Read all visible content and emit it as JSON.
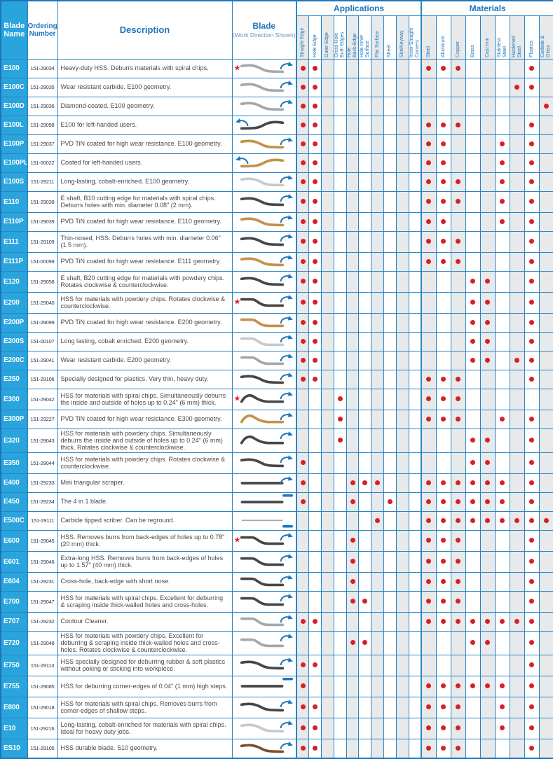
{
  "header": {
    "blade_name": "Blade\nName",
    "ordering_number": "Ordering\nNumber",
    "description": "Description",
    "blade": "Blade",
    "blade_sub": "(Work Direction Shown)",
    "applications": "Applications",
    "materials": "Materials",
    "application_columns": [
      "Straight Edge",
      "Hole Edge",
      "Outer Edge",
      "Cross-Hole\nBoth Edges",
      "Hole\nBack-Edge",
      "Hole Inner\nSurface",
      "Flat Surface",
      "Sheet",
      "Slot/Keyway",
      "Inner Straight\nCorners"
    ],
    "material_columns": [
      "Steel",
      "Aluminum",
      "Copper",
      "Brass",
      "Cast Iron",
      "Stainless\nSteel",
      "Hardened\nSteel",
      "Plastics",
      "Carbide &\nGlass"
    ]
  },
  "icons": {
    "favorite_star": "★",
    "work_direction_arc": "arc",
    "work_direction_dash": "dash"
  },
  "colors": {
    "accent_blue": "#1c75bc",
    "grid_blue": "#2a85c4",
    "name_cell_cyan": "#29a4dc",
    "dot_red": "#d62027",
    "star_red": "#ed1c24",
    "shade_gray": "#e8e9ea",
    "blade_dark": "#474747",
    "blade_silver": "#a4a8ac",
    "blade_gold": "#c2924a",
    "blade_brown": "#7b4f2e",
    "blade_light": "#c6cacd"
  },
  "rows": [
    {
      "name": "E100",
      "order": "151-29034",
      "desc": "Heavy-duty HSS. Deburrs materials with spiral chips.",
      "lines": 1,
      "star": true,
      "blade": "swan",
      "color": "silver",
      "dir": "arc",
      "apps": [
        0,
        1
      ],
      "mats": [
        0,
        1,
        2,
        7
      ]
    },
    {
      "name": "E100C",
      "order": "151-29035",
      "desc": "Wear resistant carbide. E100 geometry.",
      "lines": 1,
      "star": false,
      "blade": "swan",
      "color": "silver",
      "dir": "arc",
      "apps": [
        0,
        1
      ],
      "mats": [
        6,
        7
      ]
    },
    {
      "name": "E100D",
      "order": "151-29036",
      "desc": "Diamond-coated. E100 geometry.",
      "lines": 1,
      "star": false,
      "blade": "swan",
      "color": "silver",
      "dir": "arc",
      "apps": [
        0,
        1
      ],
      "mats": [
        8
      ]
    },
    {
      "name": "E100L",
      "order": "151-29098",
      "desc": "E100 for left-handed users.",
      "lines": 1,
      "star": false,
      "blade": "swanleft",
      "color": "dark",
      "dir": "arcleft",
      "apps": [
        0,
        1
      ],
      "mats": [
        0,
        1,
        2,
        7
      ]
    },
    {
      "name": "E100P",
      "order": "151-29037",
      "desc": "PVD TiN coated for high wear resistance. E100 geometry.",
      "lines": 1,
      "star": false,
      "blade": "swan",
      "color": "gold",
      "dir": "arc",
      "apps": [
        0,
        1
      ],
      "mats": [
        0,
        1,
        5,
        7
      ]
    },
    {
      "name": "E100PL",
      "order": "151-00022",
      "desc": "Coated for left-handed users.",
      "lines": 1,
      "star": false,
      "blade": "swanleft",
      "color": "gold",
      "dir": "arcleft",
      "apps": [
        0,
        1
      ],
      "mats": [
        0,
        1,
        5,
        7
      ]
    },
    {
      "name": "E100S",
      "order": "151-29211",
      "desc": "Long-lasting, cobalt-enriched. E100 geometry.",
      "lines": 1,
      "star": false,
      "blade": "swan",
      "color": "light",
      "dir": "arc",
      "apps": [
        0,
        1
      ],
      "mats": [
        0,
        1,
        2,
        5,
        7
      ]
    },
    {
      "name": "E110",
      "order": "151-29038",
      "desc": "E shaft, B10 cutting edge for materials with spiral chips. Deburrs holes with min. diameter 0.08\" (2 mm).",
      "lines": 2,
      "star": false,
      "blade": "swan",
      "color": "dark",
      "dir": "arc",
      "apps": [
        0,
        1
      ],
      "mats": [
        0,
        1,
        2,
        5,
        7
      ]
    },
    {
      "name": "E110P",
      "order": "151-29039",
      "desc": "PVD TiN coated for high wear resistance. E110 geometry.",
      "lines": 1,
      "star": false,
      "blade": "swan",
      "color": "gold",
      "dir": "arc",
      "apps": [
        0,
        1
      ],
      "mats": [
        0,
        1,
        5,
        7
      ]
    },
    {
      "name": "E111",
      "order": "151-29109",
      "desc": "Thin-nosed, HSS. Deburrs holes with min. diameter 0.06\" (1.5 mm).",
      "lines": 2,
      "star": false,
      "blade": "swan",
      "color": "dark",
      "dir": "arc",
      "apps": [
        0,
        1
      ],
      "mats": [
        0,
        1,
        2,
        7
      ]
    },
    {
      "name": "E111P",
      "order": "151-00099",
      "desc": "PVD TiN coated for high wear resistance. E111 geometry.",
      "lines": 1,
      "star": false,
      "blade": "swan",
      "color": "gold",
      "dir": "arc",
      "apps": [
        0,
        1
      ],
      "mats": [
        0,
        1,
        2,
        7
      ]
    },
    {
      "name": "E120",
      "order": "151-29058",
      "desc": "E shaft, B20 cutting edge for materials with powdery chips. Rotates clockwise & counterclockwise.",
      "lines": 2,
      "star": false,
      "blade": "swan",
      "color": "dark",
      "dir": "arc",
      "apps": [
        0,
        1
      ],
      "mats": [
        3,
        4,
        7
      ]
    },
    {
      "name": "E200",
      "order": "151-29040",
      "desc": "HSS for materials with powdery chips. Rotates clockwise & counterclockwise.",
      "lines": 2,
      "star": true,
      "blade": "zig",
      "color": "dark",
      "dir": "arc",
      "apps": [
        0,
        1
      ],
      "mats": [
        3,
        4,
        7
      ]
    },
    {
      "name": "E200P",
      "order": "151-29099",
      "desc": "PVD TiN coated for high wear resistance. E200 geometry.",
      "lines": 1,
      "star": false,
      "blade": "zig",
      "color": "gold",
      "dir": "arc",
      "apps": [
        0,
        1
      ],
      "mats": [
        3,
        4,
        7
      ]
    },
    {
      "name": "E200S",
      "order": "151-00107",
      "desc": "Long lasting, cobalt enriched. E200 geometry.",
      "lines": 1,
      "star": false,
      "blade": "zig",
      "color": "light",
      "dir": "arc",
      "apps": [
        0,
        1
      ],
      "mats": [
        3,
        4,
        7
      ]
    },
    {
      "name": "E200C",
      "order": "151-29041",
      "desc": "Wear resistant carbide. E200 geometry.",
      "lines": 1,
      "star": false,
      "blade": "zig",
      "color": "silver",
      "dir": "arc",
      "apps": [
        0,
        1
      ],
      "mats": [
        3,
        4,
        6,
        7
      ]
    },
    {
      "name": "E250",
      "order": "151-29106",
      "desc": "Specially designed for plastics. Very thin, heavy duty.",
      "lines": 1,
      "star": false,
      "blade": "swan",
      "color": "dark",
      "dir": "arc",
      "apps": [
        0,
        1
      ],
      "mats": [
        0,
        1,
        2,
        7
      ]
    },
    {
      "name": "E300",
      "order": "151-29042",
      "desc": "HSS for materials with spiral chips. Simultaneously deburrs the inside and outside of holes up to 0.24\" (6 mm) thick.",
      "lines": 2,
      "star": true,
      "blade": "hump",
      "color": "dark",
      "dir": "arc",
      "apps": [
        3
      ],
      "mats": [
        0,
        1,
        2
      ]
    },
    {
      "name": "E300P",
      "order": "151-29227",
      "desc": "PVD TiN coated for high wear resistance. E300 geometry.",
      "lines": 1,
      "star": false,
      "blade": "hump",
      "color": "gold",
      "dir": "arc",
      "apps": [
        3
      ],
      "mats": [
        0,
        1,
        2,
        5,
        7
      ]
    },
    {
      "name": "E320",
      "order": "151-29043",
      "desc": "HSS for materials with powdery chips. Simultaneously deburrs the inside and outside of holes up to 0.24\" (6 mm) thick. Rotates clockwise & counterclockwise.",
      "lines": 3,
      "star": false,
      "blade": "hump",
      "color": "dark",
      "dir": "arc",
      "apps": [
        3
      ],
      "mats": [
        3,
        4,
        7
      ]
    },
    {
      "name": "E350",
      "order": "151-29044",
      "desc": "HSS for materials with powdery chips. Rotates clockwise & counterclockwise.",
      "lines": 2,
      "star": false,
      "blade": "swan",
      "color": "dark",
      "dir": "arc",
      "apps": [
        0
      ],
      "mats": [
        3,
        4,
        7
      ]
    },
    {
      "name": "E400",
      "order": "151-29233",
      "desc": "Mini triangular scraper.",
      "lines": 1,
      "star": false,
      "blade": "straight",
      "color": "dark",
      "dir": "arc",
      "apps": [
        0,
        4,
        5,
        6
      ],
      "mats": [
        0,
        1,
        2,
        3,
        4,
        5,
        7
      ]
    },
    {
      "name": "E450",
      "order": "151-29234",
      "desc": "The 4 in 1 blade.",
      "lines": 1,
      "star": false,
      "blade": "straight",
      "color": "dark",
      "dir": "dash",
      "apps": [
        0,
        4,
        7
      ],
      "mats": [
        0,
        1,
        2,
        3,
        4,
        5,
        7
      ]
    },
    {
      "name": "E500C",
      "order": "151-29111",
      "desc": "Carbide tipped scriber. Can be reground.",
      "lines": 1,
      "star": false,
      "blade": "needle",
      "color": "silver",
      "dir": "dashmid",
      "apps": [
        6
      ],
      "mats": [
        0,
        1,
        2,
        3,
        4,
        5,
        6,
        7,
        8
      ]
    },
    {
      "name": "E600",
      "order": "151-29045",
      "desc": "HSS. Removes burrs from back-edges of holes up to 0.78\" (20 mm) thick.",
      "lines": 2,
      "star": true,
      "blade": "zig",
      "color": "dark",
      "dir": "arc",
      "apps": [
        4
      ],
      "mats": [
        0,
        1,
        2,
        7
      ]
    },
    {
      "name": "E601",
      "order": "151-29046",
      "desc": "Extra-long HSS. Removes burrs from back-edges of holes up to 1.57\" (40 mm) thick.",
      "lines": 2,
      "star": false,
      "blade": "zig",
      "color": "dark",
      "dir": "arc",
      "apps": [
        4
      ],
      "mats": [
        0,
        1,
        2,
        7
      ]
    },
    {
      "name": "E604",
      "order": "151-29231",
      "desc": "Cross-hole, back-edge with short nose.",
      "lines": 1,
      "star": false,
      "blade": "zig",
      "color": "dark",
      "dir": "arc",
      "apps": [
        4
      ],
      "mats": [
        0,
        1,
        2,
        7
      ]
    },
    {
      "name": "E700",
      "order": "151-29047",
      "desc": "HSS for materials with spiral chips. Excellent for deburring & scraping inside thick-walled holes and cross-holes.",
      "lines": 2,
      "star": false,
      "blade": "zig",
      "color": "dark",
      "dir": "arc",
      "apps": [
        4,
        5
      ],
      "mats": [
        0,
        1,
        2,
        7
      ]
    },
    {
      "name": "E707",
      "order": "151-29232",
      "desc": "Contour Cleaner.",
      "lines": 1,
      "star": false,
      "blade": "zig",
      "color": "silver",
      "dir": "arc",
      "apps": [
        0,
        1
      ],
      "mats": [
        0,
        1,
        2,
        3,
        4,
        5,
        6,
        7
      ]
    },
    {
      "name": "E720",
      "order": "151-29048",
      "desc": "HSS for materials with powdery chips. Excellent for deburring & scraping inside thick-walled holes and cross-holes. Rotates clockwise & counterclockwise.",
      "lines": 3,
      "star": false,
      "blade": "zig",
      "color": "silver",
      "dir": "arc",
      "apps": [
        4,
        5
      ],
      "mats": [
        3,
        4,
        7
      ]
    },
    {
      "name": "E750",
      "order": "151-29113",
      "desc": "HSS specially designed for deburring rubber & soft plastics without poking or sticking into workpiece.",
      "lines": 2,
      "star": false,
      "blade": "swan",
      "color": "dark",
      "dir": "arc",
      "apps": [
        0,
        1
      ],
      "mats": [
        7
      ]
    },
    {
      "name": "E755",
      "order": "151-29085",
      "desc": "HSS for deburring corner-edges of 0.04\" (1 mm) high steps.",
      "lines": 2,
      "star": false,
      "blade": "straight",
      "color": "dark",
      "dir": "dash",
      "apps": [
        0
      ],
      "mats": [
        0,
        1,
        2,
        3,
        4,
        5,
        7
      ]
    },
    {
      "name": "E800",
      "order": "151-29018",
      "desc": "HSS for materials with spiral chips. Removes burrs from corner-edges of shallow steps.",
      "lines": 2,
      "star": false,
      "blade": "swan",
      "color": "dark",
      "dir": "arc",
      "apps": [
        0,
        1
      ],
      "mats": [
        0,
        1,
        2,
        5,
        7
      ]
    },
    {
      "name": "E10",
      "order": "151-29216",
      "desc": "Long-lasting, cobalt-enriched for materials with spiral chips. Ideal for heavy duty jobs.",
      "lines": 2,
      "star": false,
      "blade": "swan",
      "color": "light",
      "dir": "arc",
      "apps": [
        0,
        1
      ],
      "mats": [
        0,
        1,
        2,
        5,
        7
      ]
    },
    {
      "name": "ES10",
      "order": "151-29105",
      "desc": "HSS durable blade. S10 geometry.",
      "lines": 1,
      "star": false,
      "blade": "swan",
      "color": "brown",
      "dir": "arc",
      "apps": [
        0,
        1
      ],
      "mats": [
        0,
        1,
        2,
        7
      ]
    }
  ]
}
